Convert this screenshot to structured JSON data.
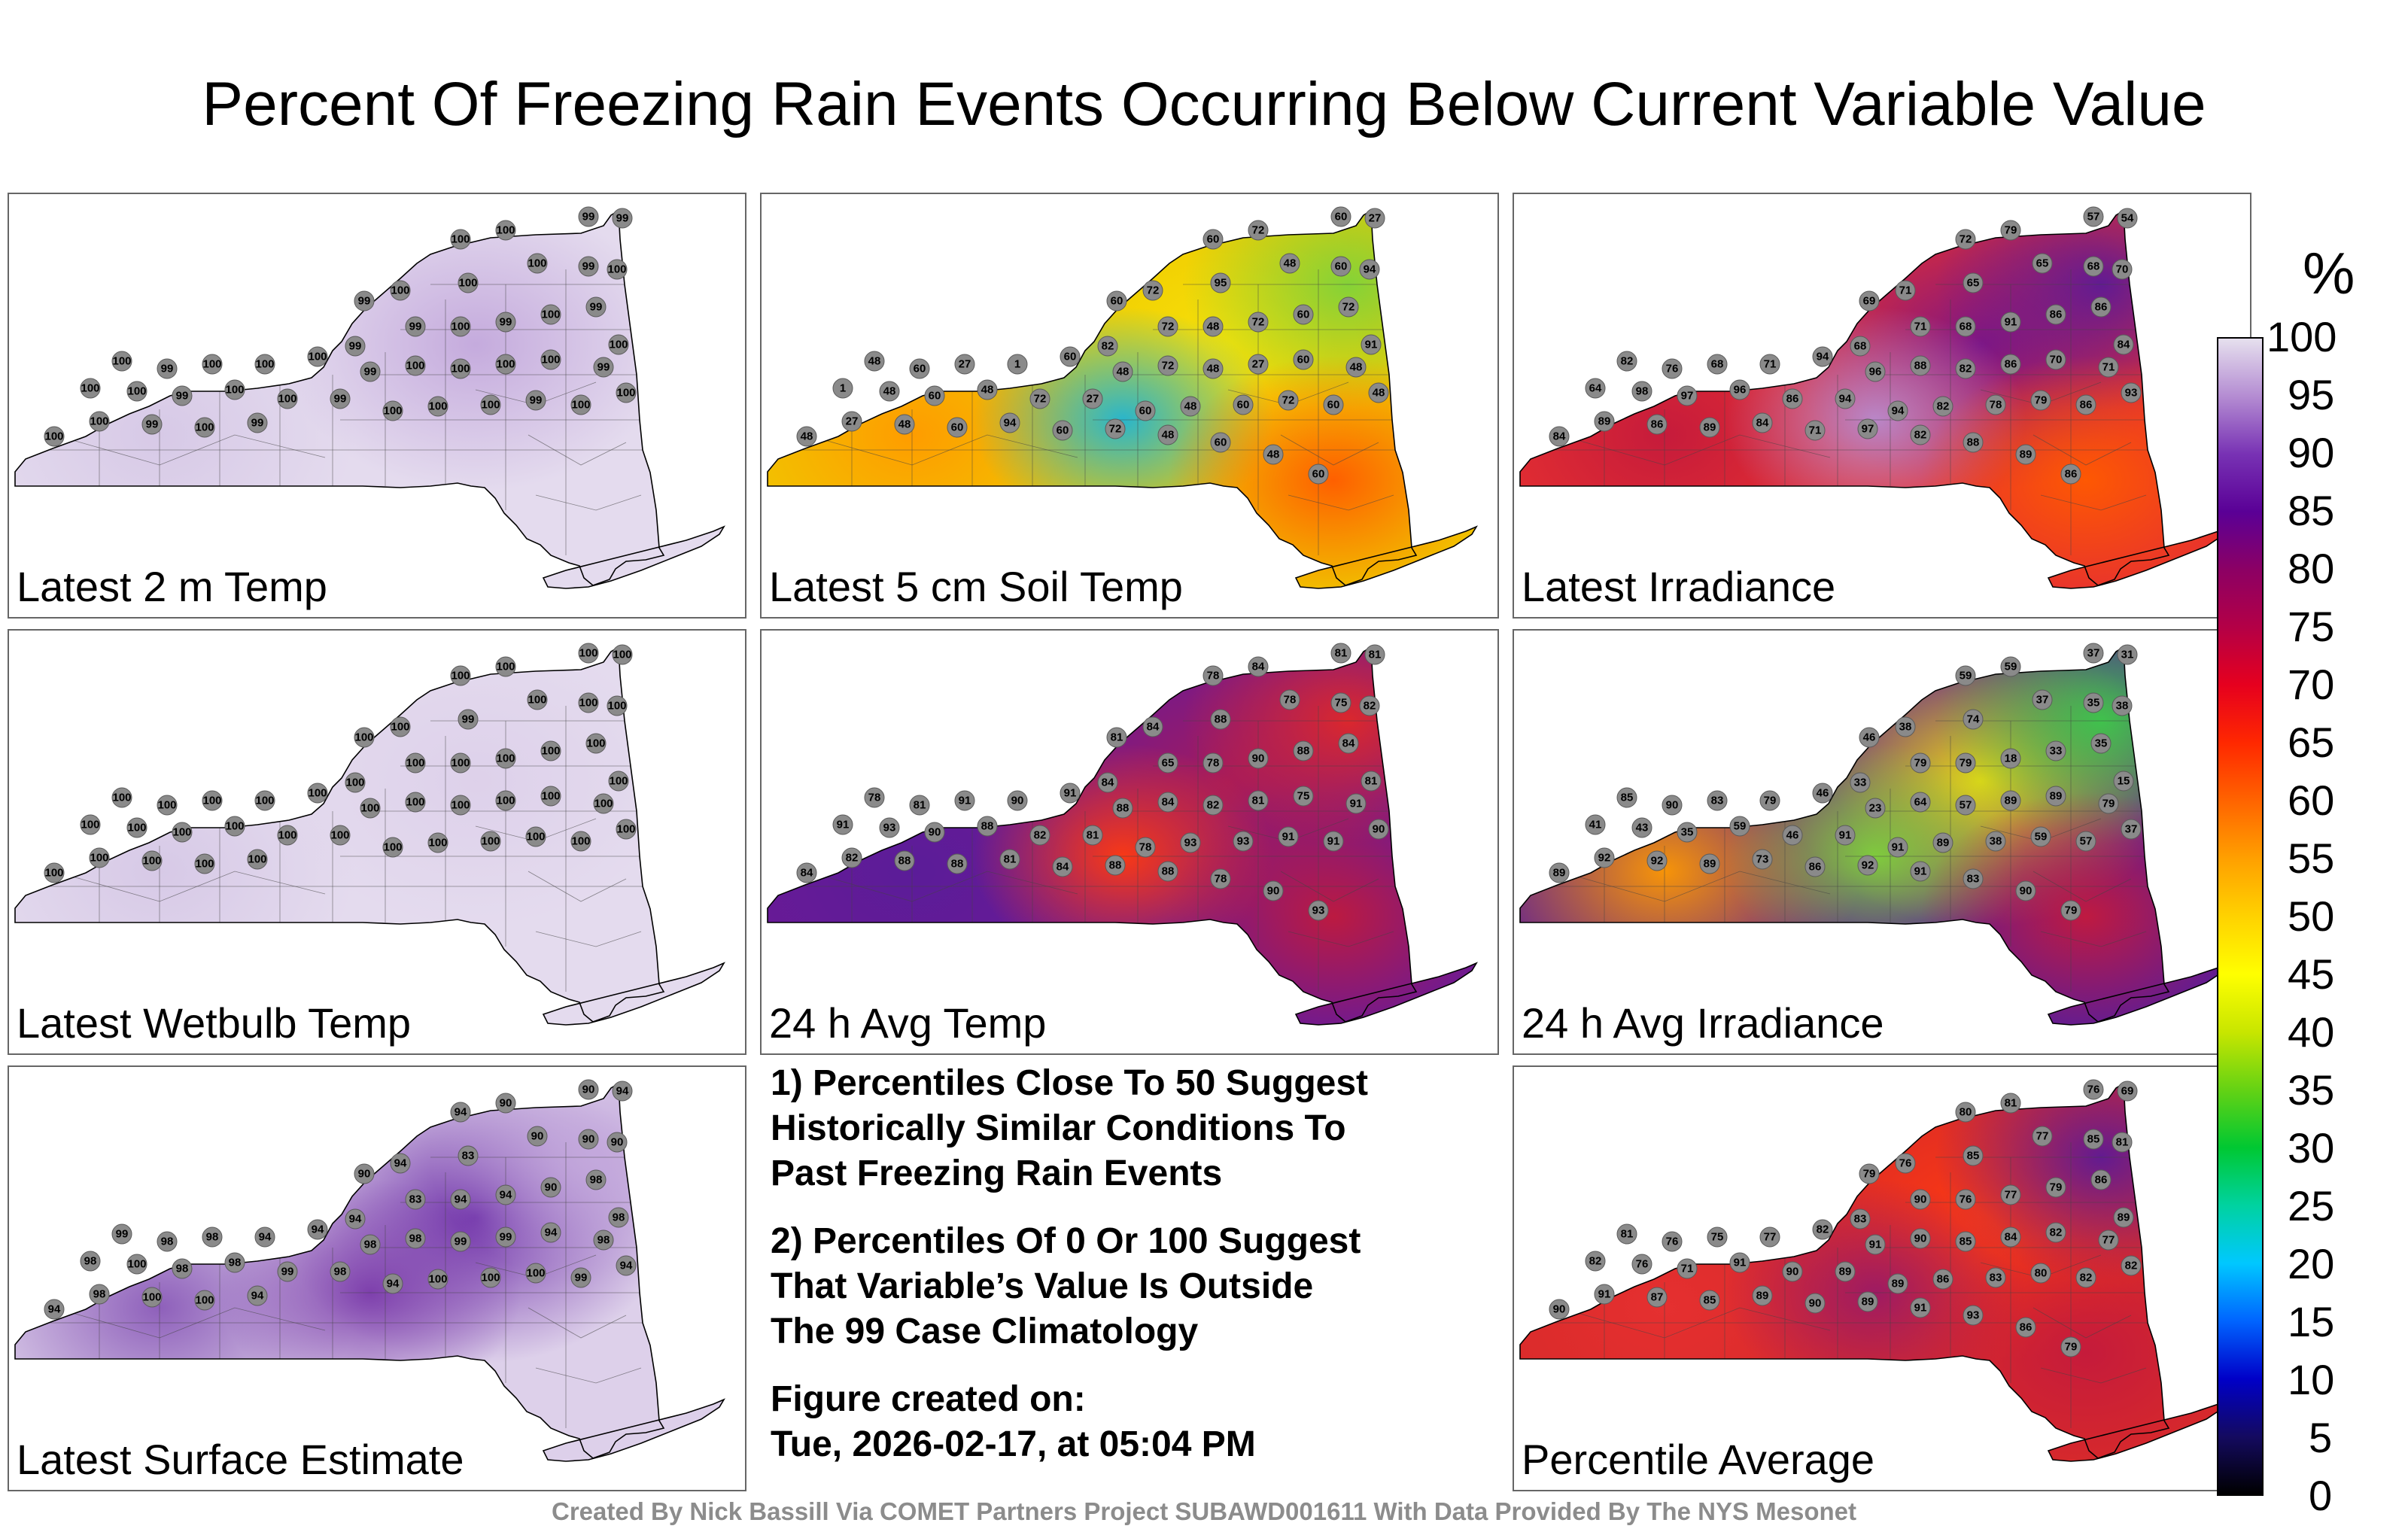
{
  "title": "Percent Of Freezing Rain Events Occurring Below Current Variable Value",
  "panels": [
    {
      "label": "Latest 2 m Temp",
      "value": 100,
      "colors": [
        "#e4dbee",
        "#d6c8e6",
        "#c3a8dc"
      ],
      "labels": [
        "100",
        "100",
        "99",
        "99",
        "99",
        "100",
        "100",
        "100",
        "99",
        "100",
        "99",
        "99",
        "100",
        "99",
        "100",
        "99",
        "100",
        "100",
        "99",
        "100",
        "100",
        "100",
        "99",
        "100",
        "100",
        "100",
        "100",
        "99",
        "100",
        "100",
        "99",
        "100",
        "100",
        "99",
        "100",
        "100",
        "100",
        "99",
        "100",
        "100",
        "100",
        "100",
        "99",
        "100",
        "99"
      ]
    },
    {
      "label": "Latest 5 cm Soil Temp",
      "value": 55,
      "colors": [
        "#f0c800",
        "#ff9a00",
        "#f6e20a",
        "#7fd23a",
        "#1fb4d6",
        "#ff5a00"
      ],
      "labels": [
        "60",
        "72",
        "60",
        "27",
        "60",
        "72",
        "95",
        "48",
        "60",
        "94",
        "82",
        "72",
        "48",
        "72",
        "60",
        "72",
        "91",
        "48",
        "60",
        "27",
        "1",
        "60",
        "48",
        "72",
        "48",
        "27",
        "60",
        "48",
        "1",
        "48",
        "60",
        "48",
        "72",
        "27",
        "60",
        "48",
        "60",
        "72",
        "60",
        "48",
        "48",
        "27",
        "48",
        "60",
        "94",
        "60",
        "72",
        "48",
        "60",
        "48",
        "60"
      ]
    },
    {
      "label": "Latest Irradiance",
      "value": 80,
      "colors": [
        "#e63030",
        "#c41a3c",
        "#7a1488",
        "#5c1a96",
        "#b88ccf",
        "#ff5a00"
      ],
      "labels": [
        "72",
        "79",
        "57",
        "54",
        "69",
        "71",
        "65",
        "65",
        "68",
        "70",
        "68",
        "71",
        "68",
        "91",
        "86",
        "86",
        "84",
        "82",
        "76",
        "68",
        "71",
        "94",
        "96",
        "88",
        "82",
        "86",
        "70",
        "71",
        "64",
        "98",
        "97",
        "96",
        "86",
        "94",
        "94",
        "82",
        "78",
        "79",
        "86",
        "93",
        "84",
        "89",
        "86",
        "89",
        "84",
        "71",
        "97",
        "82",
        "88",
        "89",
        "86"
      ]
    },
    {
      "label": "Latest Wetbulb Temp",
      "value": 100,
      "colors": [
        "#e4dbee",
        "#d6c8e6",
        "#ddd0ea"
      ],
      "labels": [
        "100",
        "100",
        "100",
        "100",
        "100",
        "100",
        "99",
        "100",
        "100",
        "100",
        "100",
        "100",
        "100",
        "100",
        "100",
        "100",
        "100",
        "100",
        "100",
        "100",
        "100",
        "100",
        "100",
        "100",
        "100",
        "100",
        "100",
        "100",
        "100",
        "100",
        "100",
        "100",
        "100",
        "100",
        "100",
        "100",
        "100",
        "100",
        "100",
        "100",
        "100",
        "100",
        "100",
        "100",
        "100"
      ]
    },
    {
      "label": "24 h Avg Temp",
      "value": 85,
      "colors": [
        "#6a1a96",
        "#5a1c98",
        "#a61a5a",
        "#e02828",
        "#ff3a10",
        "#c01a3c"
      ],
      "labels": [
        "78",
        "84",
        "81",
        "81",
        "81",
        "84",
        "88",
        "78",
        "75",
        "82",
        "84",
        "65",
        "78",
        "90",
        "88",
        "84",
        "81",
        "78",
        "81",
        "91",
        "90",
        "91",
        "88",
        "84",
        "82",
        "81",
        "75",
        "91",
        "91",
        "93",
        "90",
        "88",
        "82",
        "81",
        "78",
        "93",
        "93",
        "91",
        "91",
        "90",
        "84",
        "82",
        "88",
        "88",
        "81",
        "84",
        "88",
        "88",
        "78",
        "90",
        "93"
      ]
    },
    {
      "label": "24 h Avg Irradiance",
      "value": 50,
      "colors": [
        "#5a1c98",
        "#ff9a00",
        "#f6e20a",
        "#3cc84a",
        "#7fd23a",
        "#c41a3c"
      ],
      "labels": [
        "59",
        "59",
        "37",
        "31",
        "46",
        "38",
        "74",
        "37",
        "35",
        "38",
        "33",
        "79",
        "79",
        "18",
        "33",
        "35",
        "15",
        "85",
        "90",
        "83",
        "79",
        "46",
        "23",
        "64",
        "57",
        "89",
        "89",
        "79",
        "41",
        "43",
        "35",
        "59",
        "46",
        "91",
        "91",
        "89",
        "38",
        "59",
        "57",
        "37",
        "89",
        "92",
        "92",
        "89",
        "73",
        "86",
        "92",
        "91",
        "83",
        "90",
        "79"
      ]
    },
    {
      "label": "Latest Surface Estimate",
      "value": 95,
      "colors": [
        "#ddd0ea",
        "#8a5ab8",
        "#6a2aa6",
        "#c3a8dc",
        "#7a3aaa"
      ],
      "labels": [
        "94",
        "90",
        "90",
        "94",
        "90",
        "94",
        "83",
        "90",
        "90",
        "90",
        "94",
        "83",
        "94",
        "94",
        "90",
        "98",
        "98",
        "99",
        "98",
        "98",
        "94",
        "94",
        "98",
        "98",
        "99",
        "99",
        "94",
        "98",
        "98",
        "100",
        "98",
        "98",
        "99",
        "98",
        "94",
        "100",
        "100",
        "100",
        "99",
        "94",
        "94",
        "98",
        "100",
        "100",
        "94"
      ]
    },
    {
      "label": "Percentile Average",
      "value": 80,
      "colors": [
        "#d82a2a",
        "#e63030",
        "#ff3a10",
        "#5c1a96",
        "#9a1a66",
        "#c41a3c"
      ],
      "labels": [
        "80",
        "81",
        "76",
        "69",
        "79",
        "76",
        "85",
        "77",
        "85",
        "81",
        "83",
        "90",
        "76",
        "77",
        "79",
        "86",
        "89",
        "81",
        "76",
        "75",
        "77",
        "82",
        "91",
        "90",
        "85",
        "84",
        "82",
        "77",
        "82",
        "76",
        "71",
        "91",
        "90",
        "89",
        "89",
        "86",
        "83",
        "80",
        "82",
        "82",
        "90",
        "91",
        "87",
        "85",
        "89",
        "90",
        "89",
        "91",
        "93",
        "86",
        "79"
      ]
    }
  ],
  "notes": {
    "note1": [
      "1) Percentiles Close To 50 Suggest",
      "Historically Similar Conditions To",
      "Past Freezing Rain Events"
    ],
    "note2": [
      "2) Percentiles Of 0 Or 100 Suggest",
      "That Variable’s Value Is Outside",
      "The 99 Case Climatology"
    ],
    "created_label": "Figure created on:",
    "created_value": "Tue, 2026-02-17, at 05:04 PM"
  },
  "credit": "Created By Nick Bassill Via COMET Partners Project SUBAWD001611 With Data Provided By The NYS Mesonet",
  "colorbar": {
    "unit": "%",
    "ticks": [
      "100",
      "95",
      "90",
      "85",
      "80",
      "75",
      "70",
      "65",
      "60",
      "55",
      "50",
      "45",
      "40",
      "35",
      "30",
      "25",
      "20",
      "15",
      "10",
      "5",
      "0"
    ],
    "stops": [
      "#000000",
      "#140a60",
      "#0000c8",
      "#0064ff",
      "#00c8ff",
      "#00d2a0",
      "#00c832",
      "#64d214",
      "#c8e600",
      "#ffff00",
      "#ffd200",
      "#ffa000",
      "#ff6400",
      "#ff2800",
      "#e6001e",
      "#b40046",
      "#8c0064",
      "#5a0096",
      "#7832b4",
      "#b48cd2",
      "#e6e0ee"
    ]
  }
}
